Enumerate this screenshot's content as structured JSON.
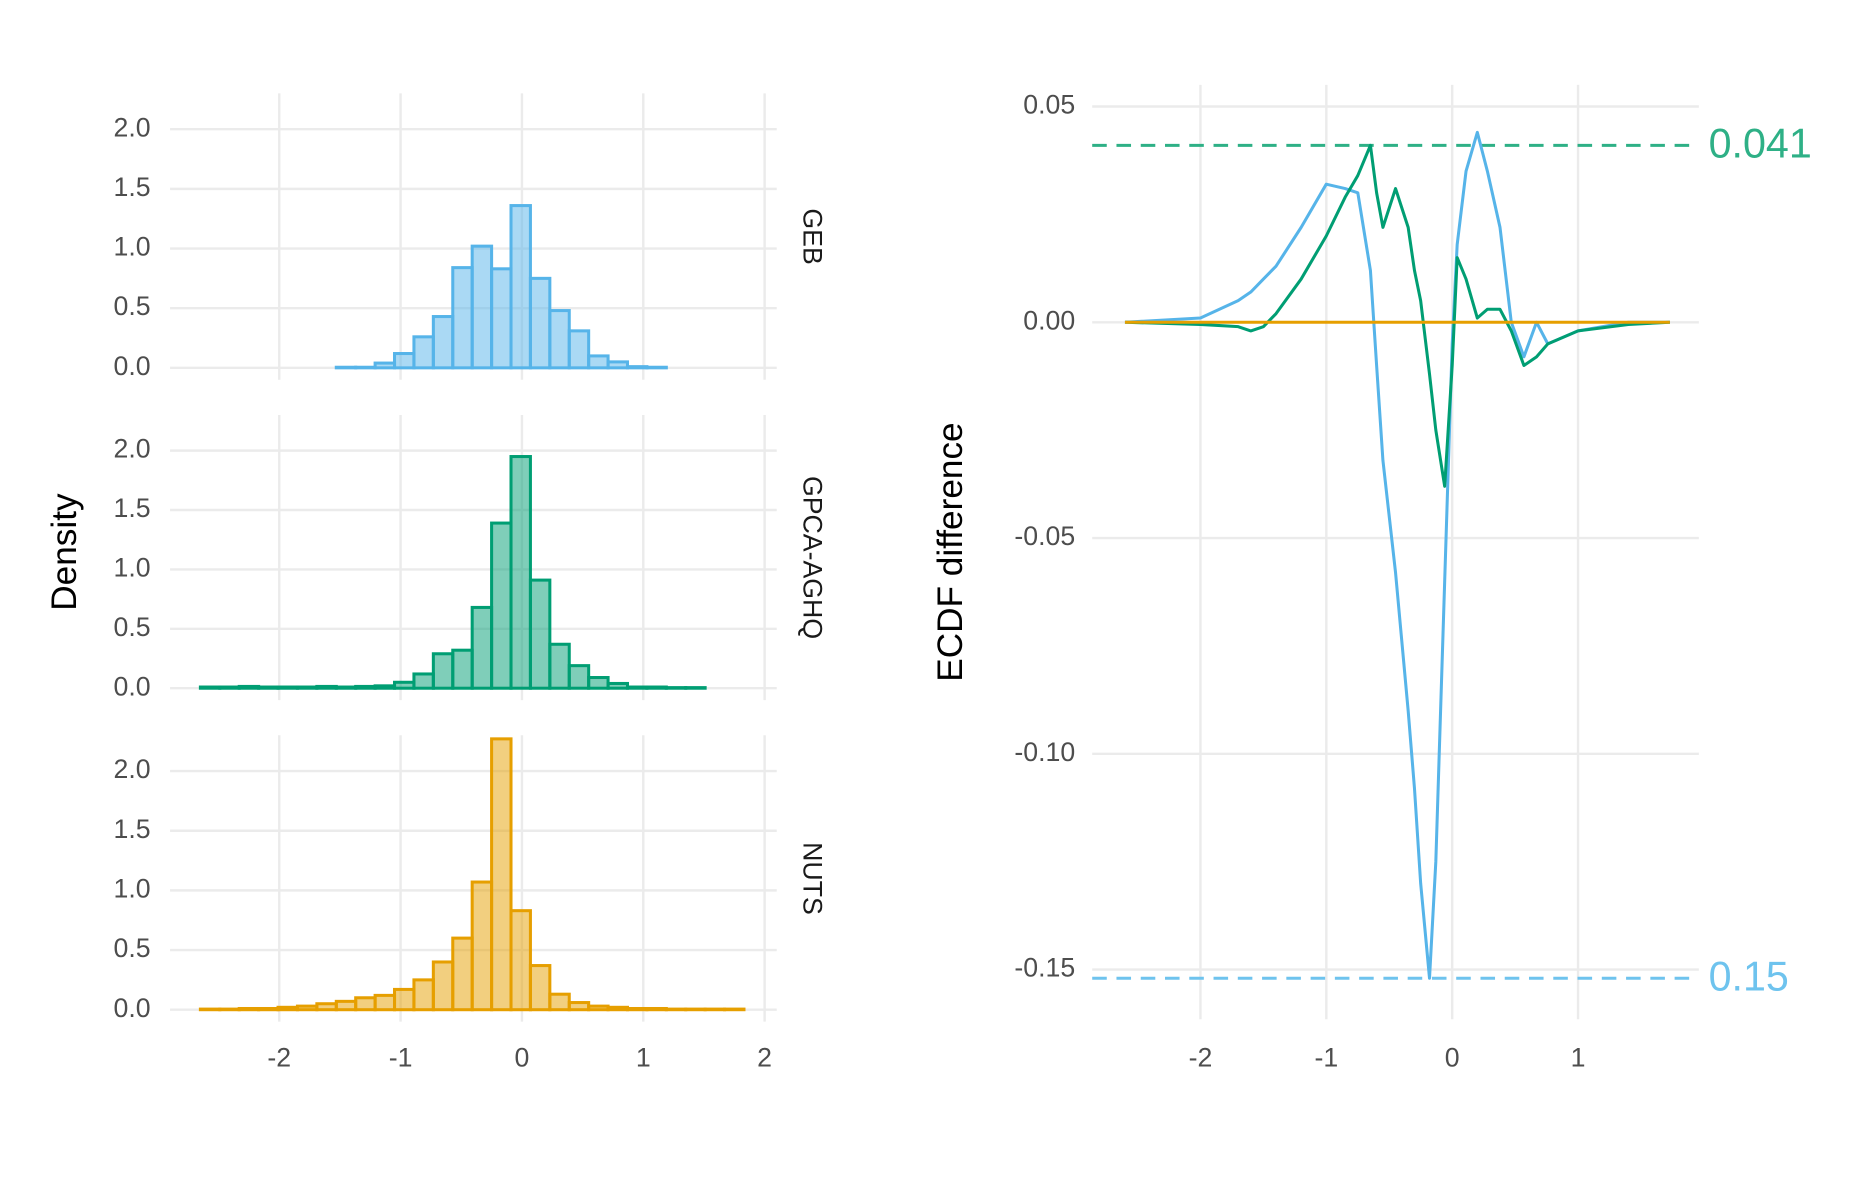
{
  "chart_data": [
    {
      "type": "histogram",
      "title": "GEB",
      "color": "#56B4E9",
      "bins": [
        -2.65,
        -2.49,
        -2.33,
        -2.17,
        -2.01,
        -1.85,
        -1.69,
        -1.53,
        -1.37,
        -1.21,
        -1.05,
        -0.89,
        -0.73,
        -0.57,
        -0.41,
        -0.25,
        -0.09,
        0.07,
        0.23,
        0.39,
        0.55,
        0.71,
        0.87,
        1.03,
        1.19,
        1.35,
        1.51,
        1.67,
        1.83
      ],
      "counts": [
        0,
        0,
        0,
        0,
        0,
        0,
        0,
        0.005,
        0.005,
        0.04,
        0.12,
        0.26,
        0.43,
        0.84,
        1.02,
        0.83,
        1.36,
        0.75,
        0.48,
        0.31,
        0.1,
        0.05,
        0.01,
        0.005,
        0,
        0,
        0,
        0
      ],
      "xlim": [
        -2.9,
        2.1
      ],
      "ylim": [
        -0.1,
        2.3
      ],
      "yticks": [
        {
          "value": 0,
          "label": "0.0"
        },
        0.5,
        {
          "value": 1,
          "label": "1.0"
        },
        1.5,
        {
          "value": 2,
          "label": "2.0"
        }
      ]
    },
    {
      "type": "histogram",
      "title": "GPCA-AGHQ",
      "color": "#009E73",
      "ylabel": "Density",
      "bins": [
        -2.65,
        -2.49,
        -2.33,
        -2.17,
        -2.01,
        -1.85,
        -1.69,
        -1.53,
        -1.37,
        -1.21,
        -1.05,
        -0.89,
        -0.73,
        -0.57,
        -0.41,
        -0.25,
        -0.09,
        0.07,
        0.23,
        0.39,
        0.55,
        0.71,
        0.87,
        1.03,
        1.19,
        1.35,
        1.51,
        1.67,
        1.83
      ],
      "counts": [
        0.01,
        0.01,
        0.015,
        0.01,
        0.01,
        0.01,
        0.015,
        0.01,
        0.015,
        0.02,
        0.05,
        0.12,
        0.29,
        0.32,
        0.68,
        1.39,
        1.95,
        0.91,
        0.37,
        0.19,
        0.09,
        0.04,
        0.01,
        0.01,
        0.005,
        0.005,
        0,
        0
      ],
      "xlim": [
        -2.9,
        2.1
      ],
      "ylim": [
        -0.1,
        2.3
      ],
      "yticks": [
        {
          "value": 0,
          "label": "0.0"
        },
        0.5,
        {
          "value": 1,
          "label": "1.0"
        },
        1.5,
        {
          "value": 2,
          "label": "2.0"
        }
      ]
    },
    {
      "type": "histogram",
      "title": "NUTS",
      "color": "#E69F00",
      "bins": [
        -2.65,
        -2.49,
        -2.33,
        -2.17,
        -2.01,
        -1.85,
        -1.69,
        -1.53,
        -1.37,
        -1.21,
        -1.05,
        -0.89,
        -0.73,
        -0.57,
        -0.41,
        -0.25,
        -0.09,
        0.07,
        0.23,
        0.39,
        0.55,
        0.71,
        0.87,
        1.03,
        1.19,
        1.35,
        1.51,
        1.67,
        1.83
      ],
      "counts": [
        0.005,
        0.005,
        0.01,
        0.01,
        0.02,
        0.03,
        0.05,
        0.07,
        0.1,
        0.12,
        0.17,
        0.25,
        0.4,
        0.6,
        1.07,
        2.27,
        0.83,
        0.37,
        0.13,
        0.06,
        0.03,
        0.02,
        0.01,
        0.01,
        0.005,
        0.005,
        0.005,
        0.005
      ],
      "xlim": [
        -2.9,
        2.1
      ],
      "ylim": [
        -0.1,
        2.3
      ],
      "xticks": [
        -2,
        -1,
        0,
        1,
        2
      ],
      "yticks": [
        {
          "value": 0,
          "label": "0.0"
        },
        0.5,
        {
          "value": 1,
          "label": "1.0"
        },
        1.5,
        {
          "value": 2,
          "label": "2.0"
        }
      ]
    },
    {
      "type": "line",
      "ylabel": "ECDF difference",
      "x": [
        -2.6,
        -2.0,
        -1.7,
        -1.6,
        -1.5,
        -1.4,
        -1.2,
        -1.0,
        -0.85,
        -0.75,
        -0.65,
        -0.6,
        -0.55,
        -0.45,
        -0.35,
        -0.3,
        -0.25,
        -0.18,
        -0.13,
        -0.06,
        0,
        0.04,
        0.11,
        0.2,
        0.28,
        0.38,
        0.47,
        0.57,
        0.67,
        0.76,
        1.0,
        1.4,
        1.73
      ],
      "series": [
        {
          "name": "GEB",
          "color": "#56B4E9",
          "values": [
            0,
            0.001,
            0.005,
            0.007,
            0.01,
            0.013,
            0.022,
            0.032,
            0.031,
            0.03,
            0.012,
            -0.01,
            -0.032,
            -0.058,
            -0.09,
            -0.108,
            -0.13,
            -0.152,
            -0.125,
            -0.06,
            -0.005,
            0.018,
            0.035,
            0.044,
            0.035,
            0.022,
            0,
            -0.008,
            0,
            -0.005,
            -0.002,
            0,
            0
          ]
        },
        {
          "name": "GPCA-AGHQ",
          "color": "#009E73",
          "values": [
            0,
            -0.0005,
            -0.001,
            -0.002,
            -0.001,
            0.002,
            0.01,
            0.02,
            0.029,
            0.034,
            0.041,
            0.03,
            0.022,
            0.031,
            0.022,
            0.012,
            0.005,
            -0.012,
            -0.025,
            -0.038,
            -0.01,
            0.015,
            0.01,
            0.001,
            0.003,
            0.003,
            -0.002,
            -0.01,
            -0.008,
            -0.005,
            -0.002,
            -0.0005,
            0
          ]
        },
        {
          "name": "NUTS",
          "color": "#E69F00",
          "values": [
            0,
            0,
            0,
            0,
            0,
            0,
            0,
            0,
            0,
            0,
            0,
            0,
            0,
            0,
            0,
            0,
            0,
            0,
            0,
            0,
            0,
            0,
            0,
            0,
            0,
            0,
            0,
            0,
            0,
            0,
            0,
            0,
            0
          ]
        }
      ],
      "reference_lines": [
        {
          "y": 0.041,
          "label": "0.041",
          "color": "#2EB086"
        },
        {
          "y": -0.152,
          "label": "0.15",
          "color": "#6EC3EE"
        }
      ],
      "xlim": [
        -2.86,
        1.96
      ],
      "ylim": [
        -0.1615,
        0.055
      ],
      "xticks": [
        -2,
        -1,
        0,
        1
      ],
      "yticks": [
        0.05,
        {
          "value": 0,
          "label": "0.00"
        },
        -0.05,
        {
          "value": -0.1,
          "label": "-0.10"
        },
        -0.15
      ]
    }
  ]
}
